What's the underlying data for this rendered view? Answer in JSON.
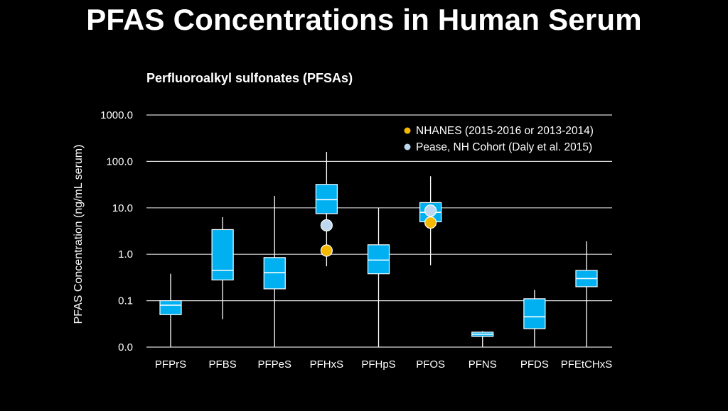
{
  "title": "PFAS Concentrations in Human Serum",
  "chart_data": {
    "type": "box",
    "subtitle": "Perfluoroalkyl sulfonates (PFSAs)",
    "ylabel": "PFAS Concentration (ng/mL serum)",
    "yscale": "log",
    "yticks": [
      0.01,
      0.1,
      1,
      10,
      100,
      1000
    ],
    "yticklabels": [
      "0.0",
      "0.1",
      "1.0",
      "10.0",
      "100.0",
      "1000.0"
    ],
    "ylim": [
      0.01,
      1000
    ],
    "grid": true,
    "legend_position": "top-right",
    "box_color": "#00b0f0",
    "categories": [
      "PFPrS",
      "PFBS",
      "PFPeS",
      "PFHxS",
      "PFHpS",
      "PFOS",
      "PFNS",
      "PFDS",
      "PFEtCHxS"
    ],
    "boxes": [
      {
        "name": "PFPrS",
        "min": 0.01,
        "q1": 0.05,
        "median": 0.08,
        "q3": 0.1,
        "max": 0.38
      },
      {
        "name": "PFBS",
        "min": 0.04,
        "q1": 0.28,
        "median": 0.45,
        "q3": 3.4,
        "max": 6.3
      },
      {
        "name": "PFPeS",
        "min": 0.01,
        "q1": 0.18,
        "median": 0.4,
        "q3": 0.85,
        "max": 18
      },
      {
        "name": "PFHxS",
        "min": 0.55,
        "q1": 7.5,
        "median": 15,
        "q3": 32,
        "max": 160
      },
      {
        "name": "PFHpS",
        "min": 0.01,
        "q1": 0.38,
        "median": 0.75,
        "q3": 1.6,
        "max": 10
      },
      {
        "name": "PFOS",
        "min": 0.58,
        "q1": 5,
        "median": 8,
        "q3": 13,
        "max": 48
      },
      {
        "name": "PFNS",
        "min": 0.01,
        "q1": 0.017,
        "median": 0.019,
        "q3": 0.021,
        "max": 0.022
      },
      {
        "name": "PFDS",
        "min": 0.01,
        "q1": 0.025,
        "median": 0.045,
        "q3": 0.11,
        "max": 0.17
      },
      {
        "name": "PFEtCHxS",
        "min": 0.01,
        "q1": 0.2,
        "median": 0.3,
        "q3": 0.45,
        "max": 1.9
      }
    ],
    "points": [
      {
        "series": "NHANES (2015-2016 or 2013-2014)",
        "color": "#f5b800",
        "category": "PFHxS",
        "value": 1.2
      },
      {
        "series": "NHANES (2015-2016 or 2013-2014)",
        "color": "#f5b800",
        "category": "PFOS",
        "value": 4.8
      },
      {
        "series": "Pease, NH Cohort (Daly et al. 2015)",
        "color": "#bdd7ee",
        "category": "PFHxS",
        "value": 4.2
      },
      {
        "series": "Pease, NH Cohort (Daly et al. 2015)",
        "color": "#bdd7ee",
        "category": "PFOS",
        "value": 8.7
      }
    ],
    "legend": [
      {
        "label": "NHANES (2015-2016 or 2013-2014)",
        "color": "#f5b800"
      },
      {
        "label": "Pease, NH Cohort (Daly et al. 2015)",
        "color": "#bdd7ee"
      }
    ]
  }
}
